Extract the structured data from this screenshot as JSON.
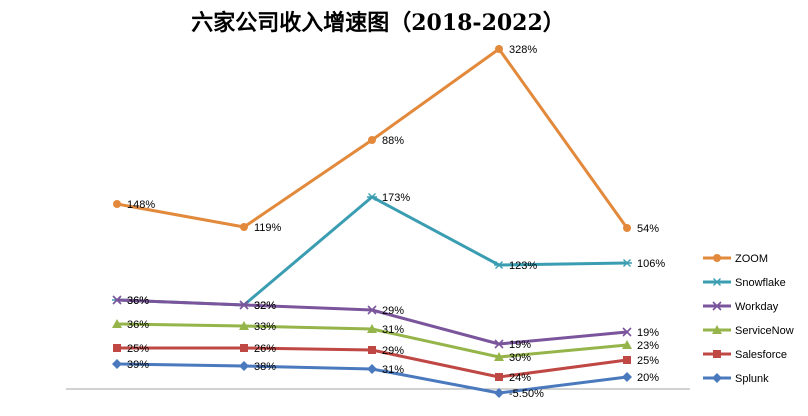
{
  "chart_data": {
    "type": "line",
    "title": "六家公司收入增速图（2018-2022）",
    "xlabel": "",
    "ylabel": "",
    "categories": [
      "",
      "",
      "",
      "",
      ""
    ],
    "legend_position": "right",
    "grid": false,
    "series": [
      {
        "name": "ZOOM",
        "color": "#e2893b",
        "marker": "circle",
        "values": [
          148,
          119,
          88,
          328,
          54
        ],
        "labels": [
          "148%",
          "119%",
          "88%",
          "328%",
          "54%"
        ]
      },
      {
        "name": "Snowflake",
        "color": "#3a9db1",
        "marker": "asterisk",
        "values": [
          36,
          32,
          173,
          123,
          106
        ],
        "labels": [
          "36%",
          "32%",
          "173%",
          "123%",
          "106%"
        ]
      },
      {
        "name": "Workday",
        "color": "#7b559c",
        "marker": "x",
        "values": [
          36,
          32,
          29,
          19,
          19
        ],
        "labels": [
          "36%",
          "32%",
          "29%",
          "19%",
          "19%"
        ]
      },
      {
        "name": "ServiceNow",
        "color": "#95b54a",
        "marker": "triangle",
        "values": [
          36,
          33,
          31,
          30,
          23
        ],
        "labels": [
          "36%",
          "33%",
          "31%",
          "30%",
          "23%"
        ]
      },
      {
        "name": "Salesforce",
        "color": "#bf4744",
        "marker": "square",
        "values": [
          25,
          26,
          29,
          24,
          25
        ],
        "labels": [
          "25%",
          "26%",
          "29%",
          "24%",
          "25%"
        ]
      },
      {
        "name": "Splunk",
        "color": "#4a79bd",
        "marker": "diamond",
        "values": [
          39,
          38,
          31,
          -5.5,
          20
        ],
        "labels": [
          "39%",
          "38%",
          "31%",
          "-5.50%",
          "20%"
        ]
      }
    ]
  }
}
